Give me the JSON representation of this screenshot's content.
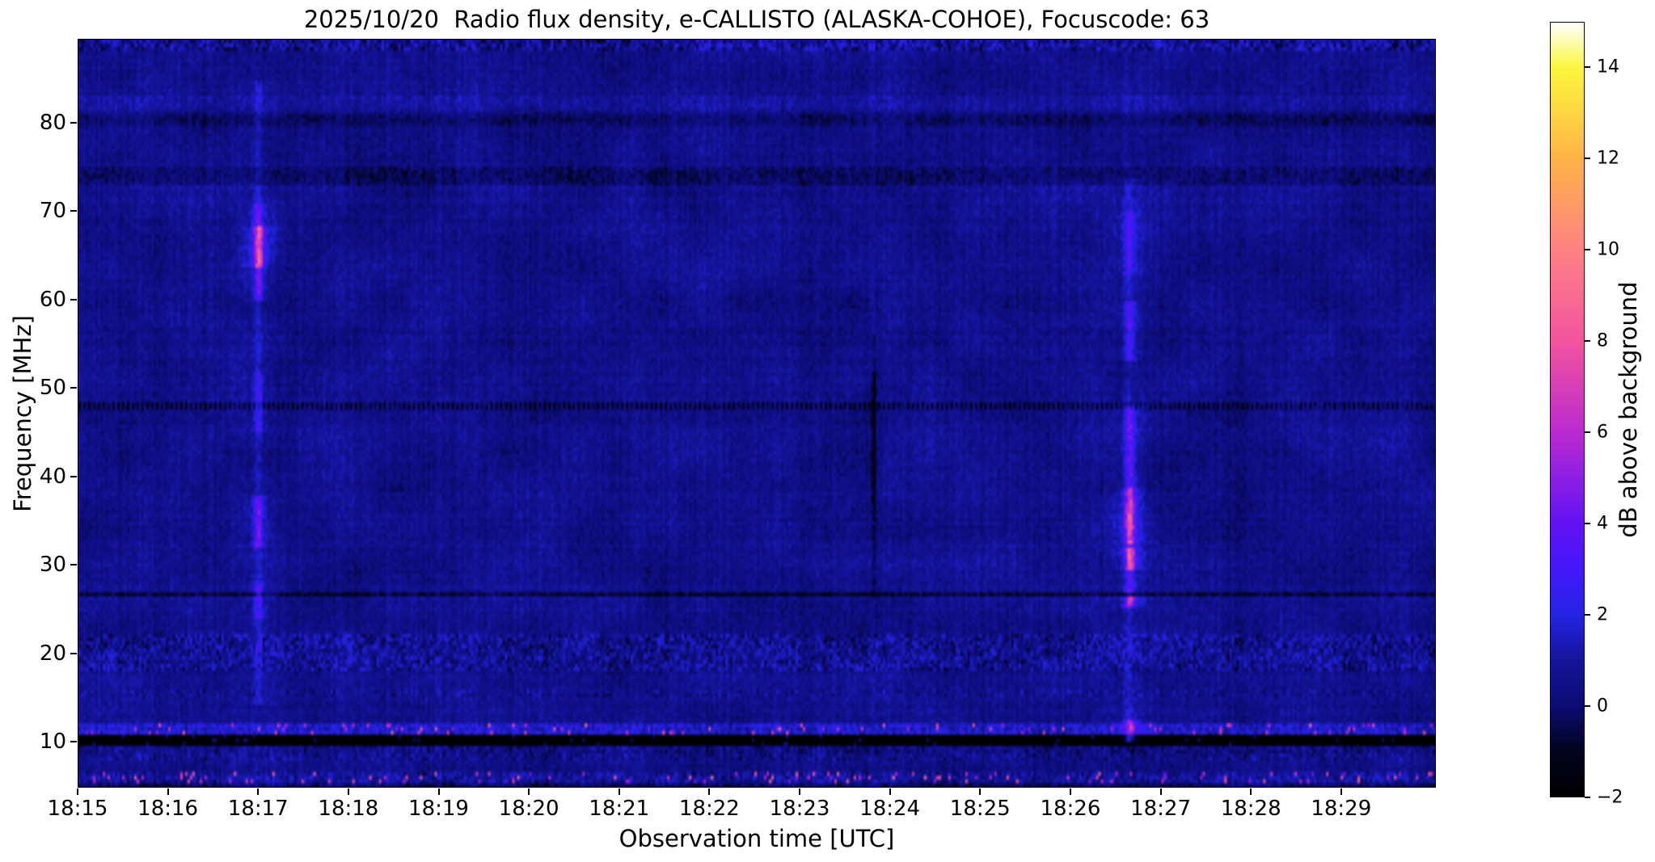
{
  "chart_data": {
    "type": "heatmap",
    "title": "2025/10/20  Radio flux density, e-CALLISTO (ALASKA-COHOE), Focuscode: 63",
    "xlabel": "Observation time [UTC]",
    "ylabel": "Frequency [MHz]",
    "x_range_minutes": [
      0,
      15.05
    ],
    "x_start_time_utc": "18:15",
    "x_ticks": [
      {
        "minute": 0,
        "label": "18:15"
      },
      {
        "minute": 1,
        "label": "18:16"
      },
      {
        "minute": 2,
        "label": "18:17"
      },
      {
        "minute": 3,
        "label": "18:18"
      },
      {
        "minute": 4,
        "label": "18:19"
      },
      {
        "minute": 5,
        "label": "18:20"
      },
      {
        "minute": 6,
        "label": "18:21"
      },
      {
        "minute": 7,
        "label": "18:22"
      },
      {
        "minute": 8,
        "label": "18:23"
      },
      {
        "minute": 9,
        "label": "18:24"
      },
      {
        "minute": 10,
        "label": "18:25"
      },
      {
        "minute": 11,
        "label": "18:26"
      },
      {
        "minute": 12,
        "label": "18:27"
      },
      {
        "minute": 13,
        "label": "18:28"
      },
      {
        "minute": 14,
        "label": "18:29"
      }
    ],
    "y_range_mhz": [
      4.8,
      89.5
    ],
    "y_ticks": [
      80,
      70,
      60,
      50,
      40,
      30,
      20,
      10
    ],
    "colorbar": {
      "label": "dB above background",
      "min": -2,
      "max": 15,
      "ticks": [
        {
          "value": 14,
          "label": "14"
        },
        {
          "value": 12,
          "label": "12"
        },
        {
          "value": 10,
          "label": "10"
        },
        {
          "value": 8,
          "label": "8"
        },
        {
          "value": 6,
          "label": "6"
        },
        {
          "value": 4,
          "label": "4"
        },
        {
          "value": 2,
          "label": "2"
        },
        {
          "value": 0,
          "label": "0"
        },
        {
          "value": -2,
          "label": "−2"
        }
      ],
      "colormap_stops": [
        [
          -2,
          "#000000"
        ],
        [
          -1,
          "#03031f"
        ],
        [
          0,
          "#0c0c74"
        ],
        [
          1,
          "#15159c"
        ],
        [
          2,
          "#2424e4"
        ],
        [
          3,
          "#4417fa"
        ],
        [
          4,
          "#6312f4"
        ],
        [
          5,
          "#8d1fe4"
        ],
        [
          6,
          "#bb2ad0"
        ],
        [
          8,
          "#f2549e"
        ],
        [
          10,
          "#ff8184"
        ],
        [
          12,
          "#ffb246"
        ],
        [
          14,
          "#fbf63c"
        ],
        [
          15,
          "#ffffff"
        ]
      ]
    },
    "background_level_db": 0.55,
    "noise": {
      "column_amp": 0.5,
      "row_amp": 0.28,
      "cell_amp": 0.9,
      "patch_amp": 0.9
    },
    "bands": [
      {
        "f_range": [
          88.2,
          89.6
        ],
        "type": "speckle",
        "amp": 1.5
      },
      {
        "f_range": [
          81.5,
          83.0
        ],
        "type": "bright",
        "amp": 0.5
      },
      {
        "f_range": [
          79.8,
          81.2
        ],
        "type": "dark",
        "amp": -0.65
      },
      {
        "f_range": [
          72.8,
          75.2
        ],
        "type": "dark-speckle",
        "amp": -0.85
      },
      {
        "f_range": [
          47.7,
          48.3
        ],
        "type": "dotted-dark",
        "amp": -1.9,
        "period": 2,
        "duty": 1
      },
      {
        "f_range": [
          26.2,
          26.9
        ],
        "type": "dark",
        "amp": -1.5
      },
      {
        "f_range": [
          17.8,
          22.3
        ],
        "type": "speckle",
        "amp": 1.25
      },
      {
        "f_range": [
          14.8,
          15.7
        ],
        "type": "speckle",
        "amp": 0.7
      },
      {
        "f_range": [
          10.9,
          12.2
        ],
        "type": "bright-speckle",
        "amp": 1.6,
        "hot_p": 0.05
      },
      {
        "f_range": [
          9.5,
          10.8
        ],
        "type": "black",
        "amp": -2.1
      },
      {
        "f_range": [
          7.8,
          9.4
        ],
        "type": "speckle",
        "amp": 0.8
      },
      {
        "f_range": [
          5.2,
          6.4
        ],
        "type": "hot-speckle",
        "amp": 1.1,
        "hot_p": 0.06
      },
      {
        "f_range": [
          4.8,
          5.2
        ],
        "type": "dark-speckle",
        "amp": -1.0
      }
    ],
    "events": [
      {
        "time_utc": "18:17:00",
        "minute": 2.0,
        "sigma_min": 0.03,
        "glow_sigma_min": 0.12,
        "glow_frac": 0.3,
        "description": "faint broadband vertical enhancement with bright core near 63-69 MHz",
        "segments": [
          [
            14,
            85,
            0.8
          ],
          [
            60,
            71,
            2.2
          ],
          [
            63.5,
            68.5,
            3.4
          ],
          [
            32,
            38,
            2.1
          ],
          [
            24,
            28,
            1.2
          ],
          [
            45,
            52,
            1.0
          ]
        ]
      },
      {
        "time_utc": "18:26:40",
        "minute": 11.667,
        "sigma_min": 0.035,
        "glow_sigma_min": 0.13,
        "glow_frac": 0.3,
        "description": "brighter vertical enhancement, strongest 30-45 MHz with blobs near 31 and 35 MHz",
        "segments": [
          [
            11,
            74,
            0.8
          ],
          [
            27,
            48,
            2.0
          ],
          [
            32.5,
            38.5,
            2.8
          ],
          [
            29.5,
            31.8,
            3.4
          ],
          [
            25.1,
            26.3,
            4.0
          ],
          [
            53,
            60,
            1.6
          ],
          [
            63,
            70,
            1.2
          ],
          [
            9.8,
            12.5,
            2.8
          ]
        ]
      },
      {
        "time_utc": "18:23:49",
        "minute": 8.82,
        "sigma_min": 0.012,
        "glow_sigma_min": 0.05,
        "glow_frac": 0.1,
        "description": "narrow dark drop-out line, strongest 36-52 MHz",
        "segments": [
          [
            36,
            52,
            -3.2
          ],
          [
            26,
            36,
            -1.5
          ],
          [
            52,
            56,
            -1.1
          ]
        ]
      }
    ],
    "render": {
      "seed": 7.31,
      "grid_cols": 560,
      "grid_rows": 200
    }
  }
}
